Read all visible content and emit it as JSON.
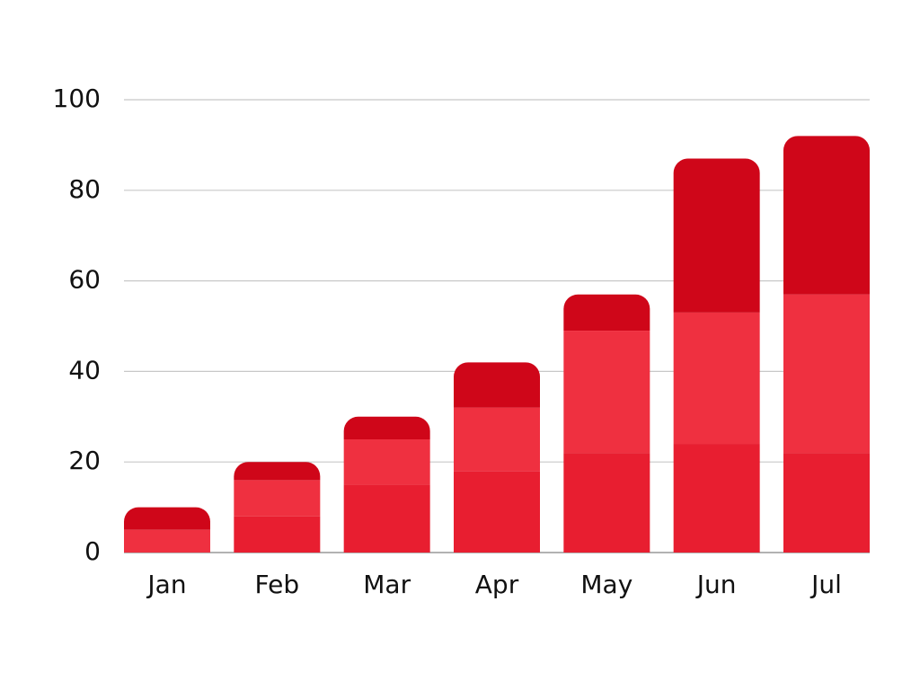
{
  "chart_data": {
    "type": "stacked_bar",
    "categories": [
      "Jan",
      "Feb",
      "Mar",
      "Apr",
      "May",
      "Jun",
      "Jul"
    ],
    "series": [
      {
        "color": "#e81e30",
        "values": [
          0,
          8,
          15,
          18,
          22,
          24,
          22
        ]
      },
      {
        "color": "#ef3040",
        "values": [
          5,
          8,
          10,
          14,
          27,
          29,
          35
        ]
      },
      {
        "color": "#cf0619",
        "values": [
          5,
          4,
          5,
          10,
          8,
          34,
          35
        ]
      }
    ],
    "ylim": [
      0,
      100
    ],
    "yticks": [
      0,
      20,
      40,
      60,
      80,
      100
    ],
    "grid": true
  }
}
